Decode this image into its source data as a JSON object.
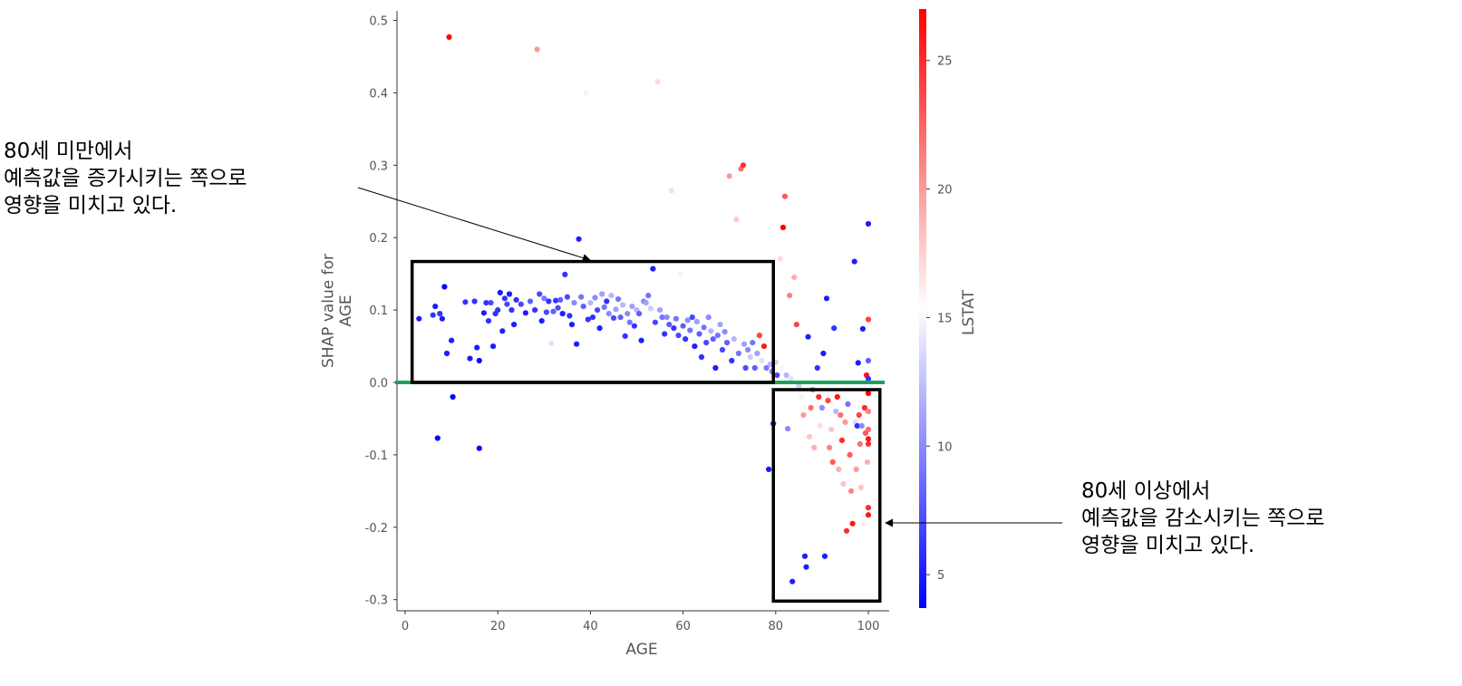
{
  "chart_data": {
    "type": "scatter",
    "xlabel": "AGE",
    "ylabel_lines": [
      "SHAP value for",
      "AGE"
    ],
    "xlim": [
      -1,
      105
    ],
    "ylim": [
      -0.31,
      0.515
    ],
    "xticks": [
      0,
      20,
      40,
      60,
      80,
      100
    ],
    "yticks": [
      0.5,
      0.4,
      0.3,
      0.2,
      0.1,
      0.0,
      -0.1,
      -0.2,
      -0.3
    ],
    "grid": false,
    "colorbar": {
      "label": "LSTAT",
      "range": [
        3.7,
        27.0
      ],
      "ticks": [
        5,
        10,
        15,
        20,
        25
      ],
      "colormap": [
        "#0000ff",
        "#ffffff",
        "#ff0000"
      ]
    },
    "reference_line": {
      "y": 0.0,
      "color": "#1aa35a"
    },
    "highlight_boxes": [
      {
        "x": [
          1.5,
          79.5
        ],
        "y": [
          0.0,
          0.167
        ]
      },
      {
        "x": [
          79.5,
          102.5
        ],
        "y": [
          -0.302,
          -0.01
        ]
      }
    ],
    "points": [
      [
        3,
        0.088,
        5
      ],
      [
        6,
        0.093,
        6
      ],
      [
        6.5,
        0.105,
        5
      ],
      [
        7,
        -0.077,
        4
      ],
      [
        7.5,
        0.095,
        6
      ],
      [
        8,
        0.088,
        5
      ],
      [
        8.5,
        0.132,
        4
      ],
      [
        9,
        0.04,
        5
      ],
      [
        9.5,
        0.477,
        27
      ],
      [
        10,
        0.058,
        5
      ],
      [
        10.3,
        -0.02,
        4
      ],
      [
        13,
        0.111,
        6
      ],
      [
        14,
        0.033,
        5
      ],
      [
        15,
        0.112,
        6
      ],
      [
        15.5,
        0.048,
        5
      ],
      [
        16,
        0.03,
        4
      ],
      [
        16,
        -0.091,
        4
      ],
      [
        17,
        0.096,
        5
      ],
      [
        17.5,
        0.11,
        6
      ],
      [
        18,
        0.085,
        6
      ],
      [
        18.5,
        0.11,
        7
      ],
      [
        19,
        0.05,
        5
      ],
      [
        19.5,
        0.095,
        6
      ],
      [
        20,
        0.1,
        6
      ],
      [
        20.5,
        0.124,
        5
      ],
      [
        21,
        0.071,
        5
      ],
      [
        21.5,
        0.116,
        6
      ],
      [
        22,
        0.108,
        7
      ],
      [
        22.5,
        0.122,
        5
      ],
      [
        23,
        0.1,
        6
      ],
      [
        23.5,
        0.08,
        5
      ],
      [
        24,
        0.114,
        6
      ],
      [
        25,
        0.108,
        7
      ],
      [
        26,
        0.096,
        5
      ],
      [
        27,
        0.112,
        8
      ],
      [
        28,
        0.1,
        6
      ],
      [
        28.5,
        0.46,
        20
      ],
      [
        29,
        0.122,
        7
      ],
      [
        29.5,
        0.085,
        5
      ],
      [
        30,
        0.116,
        9
      ],
      [
        30.5,
        0.097,
        7
      ],
      [
        31,
        0.112,
        6
      ],
      [
        31.5,
        0.054,
        14
      ],
      [
        32,
        0.098,
        8
      ],
      [
        32.5,
        0.113,
        6
      ],
      [
        33,
        0.103,
        7
      ],
      [
        33.5,
        0.114,
        8
      ],
      [
        34,
        0.095,
        5
      ],
      [
        34.5,
        0.149,
        6
      ],
      [
        35,
        0.118,
        7
      ],
      [
        35.5,
        0.092,
        6
      ],
      [
        36,
        0.08,
        5
      ],
      [
        36.5,
        0.11,
        10
      ],
      [
        37,
        0.053,
        5
      ],
      [
        37.5,
        0.198,
        5
      ],
      [
        38,
        0.118,
        9
      ],
      [
        38.5,
        0.105,
        8
      ],
      [
        39,
        0.4,
        16
      ],
      [
        39.5,
        0.087,
        6
      ],
      [
        40,
        0.11,
        12
      ],
      [
        40.5,
        0.09,
        6
      ],
      [
        41,
        0.117,
        10
      ],
      [
        41.5,
        0.1,
        7
      ],
      [
        42,
        0.075,
        5
      ],
      [
        42.5,
        0.122,
        11
      ],
      [
        43,
        0.104,
        9
      ],
      [
        43.5,
        0.112,
        6
      ],
      [
        44,
        0.095,
        10
      ],
      [
        44.5,
        0.12,
        12
      ],
      [
        45,
        0.089,
        7
      ],
      [
        45.5,
        0.101,
        11
      ],
      [
        46,
        0.115,
        9
      ],
      [
        46.5,
        0.09,
        8
      ],
      [
        47,
        0.107,
        12
      ],
      [
        47.5,
        0.064,
        6
      ],
      [
        48,
        0.095,
        10
      ],
      [
        48.5,
        0.083,
        9
      ],
      [
        49,
        0.105,
        11
      ],
      [
        49.5,
        0.078,
        6
      ],
      [
        50,
        0.1,
        12
      ],
      [
        50.5,
        0.095,
        8
      ],
      [
        51,
        0.058,
        5
      ],
      [
        51.5,
        0.112,
        10
      ],
      [
        52,
        0.11,
        11
      ],
      [
        52.5,
        0.12,
        9
      ],
      [
        53,
        0.102,
        13
      ],
      [
        53.5,
        0.157,
        5
      ],
      [
        54,
        0.083,
        7
      ],
      [
        54.5,
        0.415,
        17
      ],
      [
        55,
        0.1,
        11
      ],
      [
        55.5,
        0.09,
        9
      ],
      [
        56,
        0.067,
        6
      ],
      [
        56.5,
        0.09,
        10
      ],
      [
        57,
        0.08,
        8
      ],
      [
        57.5,
        0.265,
        17
      ],
      [
        58,
        0.075,
        6
      ],
      [
        58.5,
        0.088,
        9
      ],
      [
        59,
        0.065,
        7
      ],
      [
        59.5,
        0.15,
        16
      ],
      [
        60,
        0.078,
        8
      ],
      [
        60.5,
        0.06,
        6
      ],
      [
        61,
        0.086,
        10
      ],
      [
        61.5,
        0.072,
        9
      ],
      [
        62,
        0.09,
        7
      ],
      [
        62.5,
        0.05,
        5
      ],
      [
        63,
        0.084,
        11
      ],
      [
        63.5,
        0.067,
        8
      ],
      [
        64,
        0.035,
        6
      ],
      [
        64.5,
        0.076,
        9
      ],
      [
        65,
        0.055,
        7
      ],
      [
        65.5,
        0.09,
        10
      ],
      [
        66,
        0.071,
        12
      ],
      [
        66.5,
        0.06,
        8
      ],
      [
        67,
        0.02,
        5
      ],
      [
        67.5,
        0.065,
        9
      ],
      [
        68,
        0.08,
        11
      ],
      [
        68.5,
        0.045,
        7
      ],
      [
        69,
        0.07,
        10
      ],
      [
        69.5,
        0.055,
        8
      ],
      [
        70,
        0.285,
        20
      ],
      [
        70.5,
        0.03,
        6
      ],
      [
        71,
        0.06,
        12
      ],
      [
        71.5,
        0.225,
        18
      ],
      [
        72,
        0.04,
        9
      ],
      [
        72.5,
        0.295,
        22
      ],
      [
        73,
        0.3,
        25
      ],
      [
        73.2,
        0.053,
        11
      ],
      [
        73.5,
        0.02,
        7
      ],
      [
        74,
        0.045,
        10
      ],
      [
        74.5,
        0.035,
        13
      ],
      [
        75,
        0.055,
        9
      ],
      [
        75.5,
        0.02,
        8
      ],
      [
        76,
        0.04,
        11
      ],
      [
        76.5,
        0.065,
        24
      ],
      [
        77,
        0.03,
        14
      ],
      [
        77.5,
        0.05,
        26
      ],
      [
        78,
        0.02,
        9
      ],
      [
        78.5,
        -0.12,
        5
      ],
      [
        78.8,
        0.025,
        12
      ],
      [
        79.2,
        0.015,
        10
      ],
      [
        79.5,
        -0.057,
        5
      ],
      [
        80,
        0.028,
        13
      ],
      [
        80.3,
        0.01,
        7
      ],
      [
        81,
        0.171,
        17
      ],
      [
        81.3,
        0.02,
        15
      ],
      [
        81.6,
        0.214,
        27
      ],
      [
        82,
        0.257,
        23
      ],
      [
        82.3,
        0.01,
        12
      ],
      [
        82.6,
        -0.064,
        10
      ],
      [
        83,
        0.12,
        21
      ],
      [
        83.3,
        0.005,
        14
      ],
      [
        83.6,
        -0.275,
        5
      ],
      [
        84,
        0.145,
        19
      ],
      [
        84.5,
        0.08,
        24
      ],
      [
        85,
        -0.005,
        13
      ],
      [
        85.5,
        -0.02,
        16
      ],
      [
        86,
        -0.045,
        20
      ],
      [
        86.3,
        -0.24,
        5
      ],
      [
        86.6,
        -0.255,
        5
      ],
      [
        87,
        0.063,
        5
      ],
      [
        87.3,
        -0.075,
        18
      ],
      [
        87.6,
        -0.035,
        22
      ],
      [
        88,
        -0.01,
        11
      ],
      [
        88.3,
        -0.09,
        19
      ],
      [
        88.6,
        0.0,
        15
      ],
      [
        89,
        0.02,
        6
      ],
      [
        89.3,
        -0.02,
        25
      ],
      [
        89.6,
        -0.06,
        17
      ],
      [
        90,
        -0.035,
        10
      ],
      [
        90.3,
        0.04,
        5
      ],
      [
        90.6,
        -0.24,
        5
      ],
      [
        91,
        0.116,
        5
      ],
      [
        91.3,
        -0.025,
        24
      ],
      [
        91.6,
        -0.09,
        21
      ],
      [
        92,
        -0.065,
        18
      ],
      [
        92.3,
        -0.11,
        23
      ],
      [
        92.6,
        0.075,
        6
      ],
      [
        93,
        -0.04,
        12
      ],
      [
        93.3,
        -0.02,
        26
      ],
      [
        93.6,
        -0.12,
        19
      ],
      [
        94,
        -0.045,
        22
      ],
      [
        94.3,
        -0.08,
        25
      ],
      [
        94.6,
        -0.14,
        18
      ],
      [
        95,
        -0.055,
        20
      ],
      [
        95.3,
        -0.205,
        25
      ],
      [
        95.6,
        -0.03,
        9
      ],
      [
        96,
        -0.1,
        23
      ],
      [
        96.3,
        -0.15,
        21
      ],
      [
        96.6,
        -0.195,
        26
      ],
      [
        97,
        0.167,
        5
      ],
      [
        97.2,
        -0.055,
        14
      ],
      [
        97.4,
        -0.12,
        20
      ],
      [
        97.6,
        -0.06,
        6
      ],
      [
        97.8,
        0.027,
        5
      ],
      [
        98,
        -0.045,
        24
      ],
      [
        98.2,
        -0.085,
        22
      ],
      [
        98.4,
        -0.145,
        18
      ],
      [
        98.6,
        -0.06,
        10
      ],
      [
        98.8,
        0.074,
        5
      ],
      [
        99,
        -0.195,
        16
      ],
      [
        99.2,
        -0.035,
        25
      ],
      [
        99.4,
        -0.07,
        23
      ],
      [
        99.6,
        0.01,
        26
      ],
      [
        99.8,
        -0.11,
        19
      ],
      [
        100,
        0.219,
        5
      ],
      [
        100,
        0.087,
        24
      ],
      [
        100,
        0.03,
        8
      ],
      [
        100,
        -0.015,
        27
      ],
      [
        100,
        -0.04,
        21
      ],
      [
        100,
        -0.078,
        26
      ],
      [
        100,
        -0.085,
        25
      ],
      [
        100,
        -0.173,
        25
      ],
      [
        100,
        -0.183,
        26
      ],
      [
        100,
        0.005,
        6
      ],
      [
        100,
        -0.065,
        22
      ]
    ]
  },
  "annotations": [
    {
      "lines": [
        "80세 미만에서",
        "예측값을 증가시키는 쪽으로",
        "영향을 미치고 있다."
      ]
    },
    {
      "lines": [
        "80세 이상에서",
        "예측값을 감소시키는 쪽으로",
        "영향을 미치고 있다."
      ]
    }
  ]
}
